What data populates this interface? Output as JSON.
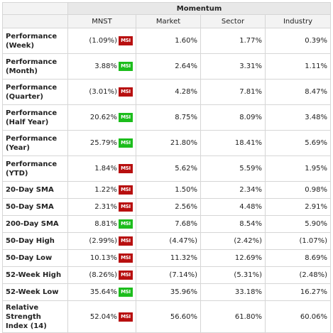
{
  "table": {
    "title": "Momentum",
    "columns": [
      "MNST",
      "Market",
      "Sector",
      "Industry"
    ],
    "badge_label": "MSI",
    "badge_colors": {
      "up": "#1cbd1c",
      "down": "#b80f0f"
    },
    "rows": [
      {
        "label": "Performance (Week)",
        "mnst": "(1.09%)",
        "badge": "down",
        "market": "1.60%",
        "sector": "1.77%",
        "industry": "0.39%"
      },
      {
        "label": "Performance (Month)",
        "mnst": "3.88%",
        "badge": "up",
        "market": "2.64%",
        "sector": "3.31%",
        "industry": "1.11%"
      },
      {
        "label": "Performance (Quarter)",
        "mnst": "(3.01%)",
        "badge": "down",
        "market": "4.28%",
        "sector": "7.81%",
        "industry": "8.47%"
      },
      {
        "label": "Performance (Half Year)",
        "mnst": "20.62%",
        "badge": "up",
        "market": "8.75%",
        "sector": "8.09%",
        "industry": "3.48%"
      },
      {
        "label": "Performance (Year)",
        "mnst": "25.79%",
        "badge": "up",
        "market": "21.80%",
        "sector": "18.41%",
        "industry": "5.69%"
      },
      {
        "label": "Performance (YTD)",
        "mnst": "1.84%",
        "badge": "down",
        "market": "5.62%",
        "sector": "5.59%",
        "industry": "1.95%"
      },
      {
        "label": "20-Day SMA",
        "mnst": "1.22%",
        "badge": "down",
        "market": "1.50%",
        "sector": "2.34%",
        "industry": "0.98%"
      },
      {
        "label": "50-Day SMA",
        "mnst": "2.31%",
        "badge": "down",
        "market": "2.56%",
        "sector": "4.48%",
        "industry": "2.91%"
      },
      {
        "label": "200-Day SMA",
        "mnst": "8.81%",
        "badge": "up",
        "market": "7.68%",
        "sector": "8.54%",
        "industry": "5.90%"
      },
      {
        "label": "50-Day High",
        "mnst": "(2.99%)",
        "badge": "down",
        "market": "(4.47%)",
        "sector": "(2.42%)",
        "industry": "(1.07%)"
      },
      {
        "label": "50-Day Low",
        "mnst": "10.13%",
        "badge": "down",
        "market": "11.32%",
        "sector": "12.69%",
        "industry": "8.69%"
      },
      {
        "label": "52-Week High",
        "mnst": "(8.26%)",
        "badge": "down",
        "market": "(7.14%)",
        "sector": "(5.31%)",
        "industry": "(2.48%)"
      },
      {
        "label": "52-Week Low",
        "mnst": "35.64%",
        "badge": "up",
        "market": "35.96%",
        "sector": "33.18%",
        "industry": "16.27%"
      },
      {
        "label": "Relative Strength Index (14)",
        "mnst": "52.04%",
        "badge": "down",
        "market": "56.60%",
        "sector": "61.80%",
        "industry": "60.06%"
      }
    ]
  }
}
